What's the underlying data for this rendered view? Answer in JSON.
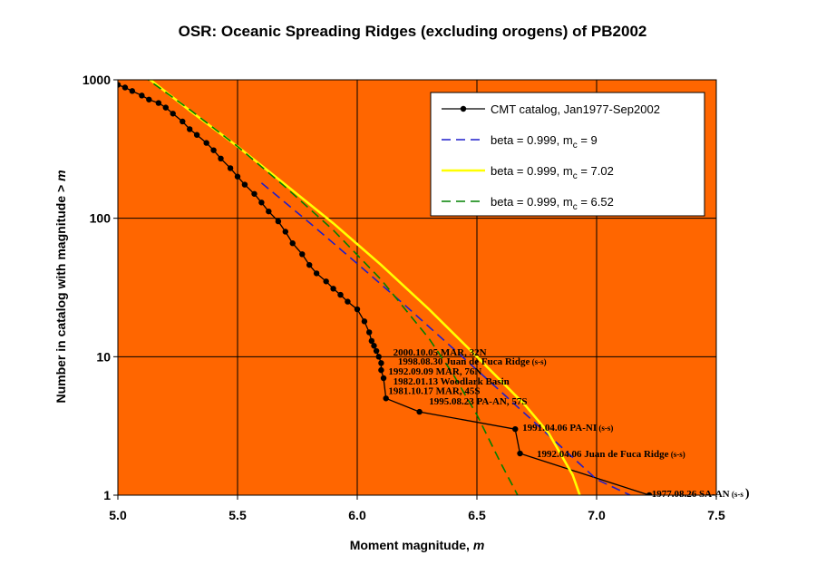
{
  "chart_data": {
    "type": "line",
    "title": "OSR: Oceanic Spreading Ridges (excluding orogens) of PB2002",
    "xlabel": "Moment magnitude, ",
    "xlabel_italic": "m",
    "ylabel": "Number in catalog with magnitude > ",
    "ylabel_italic": "m",
    "xlim": [
      5.0,
      7.5
    ],
    "ylim": [
      1,
      1000
    ],
    "yscale": "log",
    "x_ticks": [
      "5.0",
      "5.5",
      "6.0",
      "6.5",
      "7.0",
      "7.5"
    ],
    "y_ticks": [
      "1",
      "10",
      "100",
      "1000"
    ],
    "plot_background": "#FF6600",
    "grid": true,
    "legend_position": "top-right",
    "series": [
      {
        "name": "CMT catalog, Jan1977-Sep2002",
        "style": "line-with-markers",
        "color": "#000000",
        "x": [
          5.0,
          5.03,
          5.06,
          5.1,
          5.13,
          5.17,
          5.2,
          5.23,
          5.27,
          5.3,
          5.33,
          5.37,
          5.4,
          5.43,
          5.47,
          5.5,
          5.53,
          5.57,
          5.6,
          5.63,
          5.67,
          5.7,
          5.73,
          5.77,
          5.8,
          5.83,
          5.87,
          5.9,
          5.93,
          5.96,
          6.0,
          6.03,
          6.05,
          6.06,
          6.07,
          6.08,
          6.09,
          6.1,
          6.1,
          6.11,
          6.12,
          6.26,
          6.66,
          6.68,
          7.22
        ],
        "y": [
          920,
          880,
          830,
          770,
          720,
          680,
          630,
          570,
          500,
          440,
          400,
          350,
          310,
          270,
          230,
          200,
          175,
          150,
          130,
          112,
          95,
          80,
          66,
          55,
          46,
          40,
          35,
          31,
          28,
          25,
          22,
          18,
          15,
          13,
          12,
          11,
          10,
          9,
          8,
          7,
          5,
          4,
          3,
          2,
          1
        ]
      },
      {
        "name": "beta = 0.999, m",
        "name_sub": "c",
        "name_suffix": " = 9",
        "style": "dashed",
        "color": "#1E1ECC",
        "x": [
          5.6,
          5.8,
          6.0,
          6.2,
          6.4,
          6.6,
          6.8,
          7.0,
          7.14
        ],
        "y": [
          180,
          93,
          47,
          23.5,
          11.5,
          5.6,
          2.7,
          1.3,
          1.0
        ]
      },
      {
        "name": "beta = 0.999, m",
        "name_sub": "c",
        "name_suffix": " = 7.02",
        "style": "solid",
        "color": "#FFFF00",
        "x": [
          5.12,
          5.3,
          5.5,
          5.7,
          5.9,
          6.1,
          6.3,
          6.5,
          6.7,
          6.8,
          6.9,
          6.93
        ],
        "y": [
          1050,
          600,
          330,
          175,
          92,
          46,
          22,
          10,
          4.5,
          2.8,
          1.4,
          1.0
        ]
      },
      {
        "name": "beta = 0.999, m",
        "name_sub": "c",
        "name_suffix": " = 6.52",
        "style": "dashed",
        "color": "#008000",
        "x": [
          5.1,
          5.3,
          5.5,
          5.7,
          5.9,
          6.1,
          6.3,
          6.4,
          6.5,
          6.6,
          6.67
        ],
        "y": [
          1080,
          610,
          330,
          168,
          82,
          36,
          13.5,
          7.5,
          3.8,
          1.7,
          1.0
        ]
      }
    ],
    "annotations": [
      {
        "text": "2000.10.05 MAR, 32N",
        "x": 6.15,
        "y": 10.8
      },
      {
        "text": "1998.08.30 Juan de Fuca Ridge",
        "suffix": " (s-s)",
        "x": 6.17,
        "y": 9.3
      },
      {
        "text": "1992.09.09 MAR, 76N",
        "x": 6.13,
        "y": 7.9
      },
      {
        "text": "1982.01.13 Woodlark Basin",
        "x": 6.15,
        "y": 6.7
      },
      {
        "text": "1981.10.17 MAR, 45S",
        "x": 6.13,
        "y": 5.7
      },
      {
        "text": "1995.08.23 PA-AN, 57S",
        "x": 6.3,
        "y": 4.8
      },
      {
        "text": "1991.04.06 PA-NI",
        "suffix": " (s-s)",
        "x": 6.69,
        "y": 3.1
      },
      {
        "text": "1992.04.06 Juan de Fuca Ridge",
        "suffix": " (s-s)",
        "x": 6.75,
        "y": 2.0
      },
      {
        "text": "1977.08.26 SA-AN",
        "suffix": " (s-s",
        "suffix2": ")",
        "x": 7.23,
        "y": 1.03
      }
    ]
  }
}
